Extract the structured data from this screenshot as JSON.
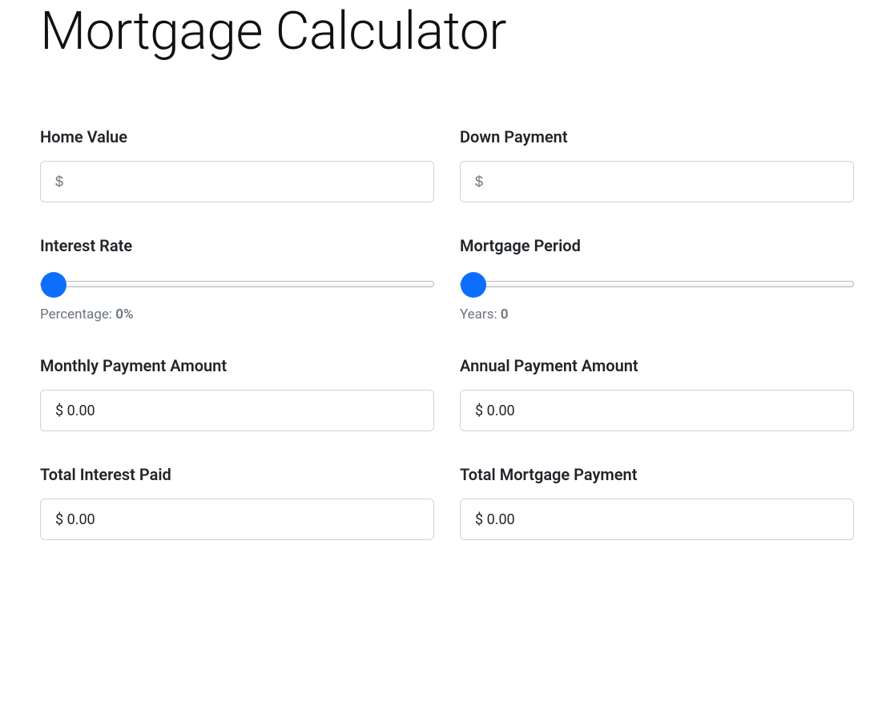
{
  "title": "Mortgage Calculator",
  "colors": {
    "accent": "#0d6efd",
    "border": "#ced4da",
    "muted_text": "#6c757d",
    "text": "#212529",
    "background": "#ffffff"
  },
  "typography": {
    "title_fontsize": 66,
    "title_weight": 300,
    "label_fontsize": 20,
    "label_weight": 600,
    "input_fontsize": 18,
    "caption_fontsize": 17
  },
  "fields": {
    "home_value": {
      "label": "Home Value",
      "placeholder": "$",
      "value": ""
    },
    "down_payment": {
      "label": "Down Payment",
      "placeholder": "$",
      "value": ""
    },
    "interest_rate": {
      "label": "Interest Rate",
      "slider_value": 0,
      "slider_min": 0,
      "slider_max": 100,
      "caption_prefix": "Percentage: ",
      "caption_value": "0%"
    },
    "mortgage_period": {
      "label": "Mortgage Period",
      "slider_value": 0,
      "slider_min": 0,
      "slider_max": 30,
      "caption_prefix": "Years: ",
      "caption_value": "0"
    },
    "monthly_payment": {
      "label": "Monthly Payment Amount",
      "value": "$ 0.00"
    },
    "annual_payment": {
      "label": "Annual Payment Amount",
      "value": "$ 0.00"
    },
    "total_interest": {
      "label": "Total Interest Paid",
      "value": "$ 0.00"
    },
    "total_mortgage": {
      "label": "Total Mortgage Payment",
      "value": "$ 0.00"
    }
  }
}
